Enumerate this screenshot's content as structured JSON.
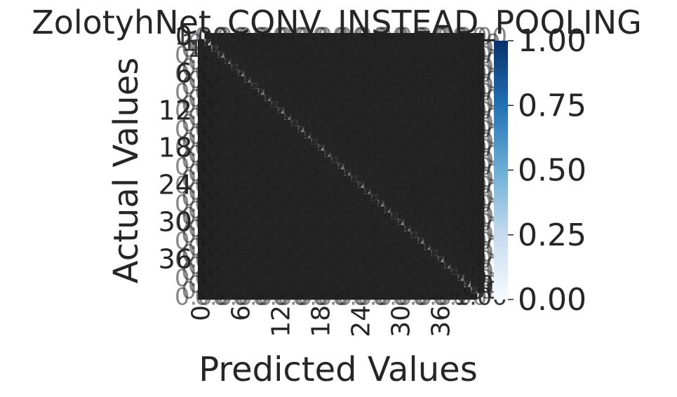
{
  "chart_data": {
    "type": "heatmap",
    "title": "ZolotyhNet_CONV_INSTEAD_POOLING",
    "xlabel": "Predicted Values",
    "ylabel": "Actual Values",
    "n_classes": 43,
    "x_tick_labels": [
      "0",
      "6",
      "12",
      "18",
      "24",
      "30",
      "36"
    ],
    "y_tick_labels": [
      "0",
      "6",
      "12",
      "18",
      "24",
      "30",
      "36"
    ],
    "colorbar": {
      "colormap": "Blues",
      "range": [
        0.0,
        1.0
      ],
      "ticks": [
        "0.00",
        "0.25",
        "0.50",
        "0.75",
        "1.00"
      ]
    },
    "annotation_format": "0.00",
    "values": "normalized confusion matrix: diagonal cells approximately 1.00, off-diagonal cells approximately 0.00"
  },
  "colors": {
    "cell_dark": "#1c1c1c",
    "cell_diag": "#f3f8fe",
    "text_dark": "#262626",
    "text_light": "#ffffff",
    "cmap_low": "#f7fbff",
    "cmap_high": "#08306b"
  }
}
